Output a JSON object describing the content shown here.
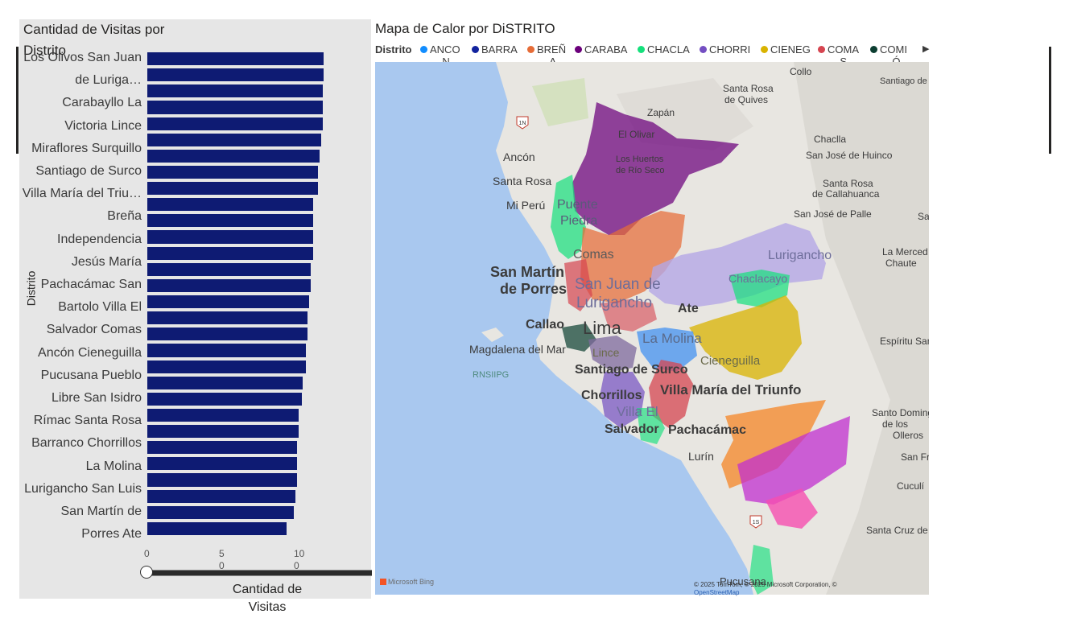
{
  "bar_chart": {
    "title": "Cantidad de Visitas por Distrito",
    "y_axis_title": "Distrito",
    "x_axis_title": "Cantidad de Visitas",
    "x_ticks": [
      "0",
      "5\n0",
      "10\n0"
    ],
    "category_labels": [
      "Los Olivos San Juan",
      "de Luriga…",
      "Carabayllo La",
      "Victoria Lince",
      "Miraflores Surquillo",
      "Santiago de Surco",
      "Villa María del Triu…",
      "Breña",
      "Independencia",
      "Jesús María",
      "Pachacámac San",
      "Bartolo Villa El",
      "Salvador Comas",
      "Ancón Cieneguilla",
      "Pucusana Pueblo",
      "Libre San Isidro",
      "Rímac Santa Rosa",
      "Barranco Chorrillos",
      "La Molina",
      "Lurigancho San Luis",
      "San Martín de",
      "Porres Ate"
    ]
  },
  "chart_data": {
    "type": "bar",
    "orientation": "horizontal",
    "title": "Cantidad de Visitas por Distrito",
    "xlabel": "Cantidad de Visitas",
    "ylabel": "Distrito",
    "xlim": [
      0,
      150
    ],
    "categories": [
      "Los Olivos",
      "San Juan de Lurigancho",
      "Carabayllo",
      "La Victoria",
      "Lince",
      "Miraflores",
      "Surquillo",
      "Santiago de Surco",
      "Villa María del Triunfo",
      "Breña",
      "Independencia",
      "Jesús María",
      "Pachacámac",
      "San Bartolo",
      "Villa El Salvador",
      "Comas",
      "Ancón",
      "Cieneguilla",
      "Pucusana",
      "Pueblo Libre",
      "San Isidro",
      "Rímac",
      "Santa Rosa",
      "Barranco",
      "Chorrillos",
      "La Molina",
      "Lurigancho",
      "San Luis",
      "San Martín de Porres",
      "Ate"
    ],
    "values": [
      118,
      118,
      117,
      117,
      117,
      116,
      115,
      114,
      114,
      111,
      111,
      111,
      111,
      109,
      109,
      108,
      107,
      107,
      106,
      106,
      104,
      103,
      101,
      101,
      100,
      100,
      100,
      99,
      98,
      93
    ]
  },
  "map": {
    "title": "Mapa de Calor por DiSTRITO",
    "legend_title": "Distrito",
    "legend_items": [
      {
        "label": "ANCO",
        "wrap": "N",
        "color": "#118dff"
      },
      {
        "label": "BARRA",
        "wrap": "…",
        "color": "#12239e"
      },
      {
        "label": "BREÑ",
        "wrap": "A",
        "color": "#e66c37"
      },
      {
        "label": "CARABA",
        "wrap": "…",
        "color": "#6b007b"
      },
      {
        "label": "CHACLA",
        "wrap": "…",
        "color": "#15e07c"
      },
      {
        "label": "CHORRI",
        "wrap": "…",
        "color": "#744ec2"
      },
      {
        "label": "CIENEG",
        "wrap": "…",
        "color": "#d9b300"
      },
      {
        "label": "COMA",
        "wrap": "S",
        "color": "#d64550"
      },
      {
        "label": "COMI",
        "wrap": "Ó",
        "color": "#0c3e31"
      }
    ],
    "legend_next_icon": "triangle-right-icon",
    "bing_label": "Microsoft Bing",
    "attribution": "© 2025 TomTom, © 2025 Microsoft Corporation, ©",
    "attribution_link": "OpenStreetMap",
    "place_labels": {
      "collo": "Collo",
      "santiago_caramp": "Santiago de Carampoma",
      "santa_rosa_quives_1": "Santa Rosa",
      "santa_rosa_quives_2": "de Quives",
      "zapan": "Zapán",
      "el_olivar": "El Olivar",
      "chaclla": "Chaclla",
      "san_jose_huinco": "San José de Huinco",
      "ancon": "Ancón",
      "los_huertos_1": "Los Huertos",
      "los_huertos_2": "de Río Seco",
      "santa_rosa": "Santa Rosa",
      "santa_rosa_call_1": "Santa Rosa",
      "santa_rosa_call_2": "de Callahuanca",
      "puente_1": "Puente",
      "puente_2": "Piedra",
      "mi_peru": "Mi Perú",
      "san_jose_palle": "San José de Palle",
      "comas": "Comas",
      "lurigancho": "Lurigancho",
      "la_merced_1": "La Merced",
      "la_merced_2": "Chaute",
      "san_martin_1": "San Martín",
      "san_martin_2": "de Porres",
      "sjl_1": "San Juan de",
      "sjl_2": "Lurigancho",
      "chaclacayo": "Chaclacayo",
      "ate": "Ate",
      "callao": "Callao",
      "lima": "Lima",
      "magdalena": "Magdalena del Mar",
      "la_molina": "La Molina",
      "lince": "Lince",
      "cieneguilla": "Cieneguilla",
      "espiritu_santo": "Espíritu Santo",
      "rnsiipg": "RNSIIPG",
      "surco": "Santiago de Surco",
      "chorrillos": "Chorrillos",
      "vmt": "Villa María del Triunfo",
      "villa_el_1": "Villa El",
      "villa_el_2": "Salvador",
      "pachacamac": "Pachacámac",
      "santo_domingo_1": "Santo Domingo",
      "santo_domingo_2": "de los",
      "santo_domingo_3": "Olleros",
      "lurin": "Lurín",
      "san_fr": "San Fr",
      "cuculi": "Cuculí",
      "santa_cruz": "Santa Cruz de",
      "pucusana": "Pucusana",
      "route_1n": "1N",
      "route_1s": "1S",
      "sa": "Sa"
    }
  }
}
